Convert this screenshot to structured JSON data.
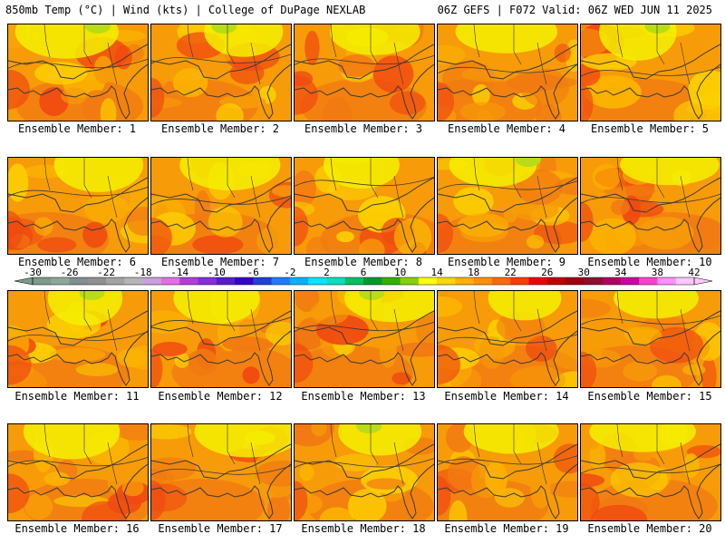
{
  "header": {
    "left": "850mb Temp (°C) | Wind (kts) | College of DuPage NEXLAB",
    "right": "06Z GEFS | F072 Valid: 06Z WED JUN 11 2025"
  },
  "members": [
    {
      "label": "Ensemble Member: 1"
    },
    {
      "label": "Ensemble Member: 2"
    },
    {
      "label": "Ensemble Member: 3"
    },
    {
      "label": "Ensemble Member: 4"
    },
    {
      "label": "Ensemble Member: 5"
    },
    {
      "label": "Ensemble Member: 6"
    },
    {
      "label": "Ensemble Member: 7"
    },
    {
      "label": "Ensemble Member: 8"
    },
    {
      "label": "Ensemble Member: 9"
    },
    {
      "label": "Ensemble Member: 10"
    },
    {
      "label": "Ensemble Member: 11"
    },
    {
      "label": "Ensemble Member: 12"
    },
    {
      "label": "Ensemble Member: 13"
    },
    {
      "label": "Ensemble Member: 14"
    },
    {
      "label": "Ensemble Member: 15"
    },
    {
      "label": "Ensemble Member: 16"
    },
    {
      "label": "Ensemble Member: 17"
    },
    {
      "label": "Ensemble Member: 18"
    },
    {
      "label": "Ensemble Member: 19"
    },
    {
      "label": "Ensemble Member: 20"
    }
  ],
  "colorbar": {
    "tick_labels": [
      "-30",
      "-26",
      "-22",
      "-18",
      "-14",
      "-10",
      "-6",
      "-2",
      "2",
      "6",
      "10",
      "14",
      "18",
      "22",
      "26",
      "30",
      "34",
      "38",
      "42"
    ],
    "colors": [
      "#7b9b8b",
      "#8fa79b",
      "#7f8f8f",
      "#909090",
      "#a3a3a3",
      "#b5b5b5",
      "#c9a0dc",
      "#e36ee8",
      "#b33ddb",
      "#8a2be2",
      "#5a1ad0",
      "#3300cc",
      "#2040e0",
      "#1e7bff",
      "#00b2ff",
      "#00e5ff",
      "#00e0c0",
      "#00c060",
      "#009a2a",
      "#33b000",
      "#88d000",
      "#ffff00",
      "#ffd800",
      "#ffb000",
      "#ff9000",
      "#ff6a00",
      "#ff3b00",
      "#ee0000",
      "#c00000",
      "#a00010",
      "#8c1030",
      "#b00060",
      "#d000a0",
      "#ff40d0",
      "#ff90ff",
      "#ffc8ff"
    ],
    "outline_color": "#000000"
  },
  "map_colors": {
    "yellow_green": "#b8dc18",
    "yellow": "#f4f000",
    "gold": "#fcd000",
    "light_orange": "#fbb400",
    "orange": "#f79b08",
    "dark_orange": "#f17a12",
    "red_orange": "#f04a10",
    "coast": "#3a3a3a"
  }
}
